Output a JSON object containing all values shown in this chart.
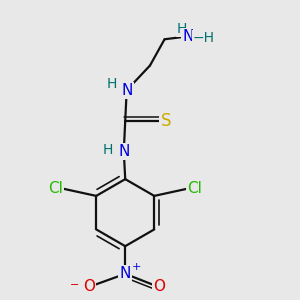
{
  "bg_color": "#e8e8e8",
  "bond_color": "#111111",
  "bond_lw": 1.6,
  "atom_bg": "#e8e8e8",
  "colors": {
    "N": "#0000dd",
    "H": "#007070",
    "S": "#ccaa00",
    "Cl": "#22bb00",
    "O": "#dd0000",
    "C": "#111111"
  },
  "fontsize": 11
}
